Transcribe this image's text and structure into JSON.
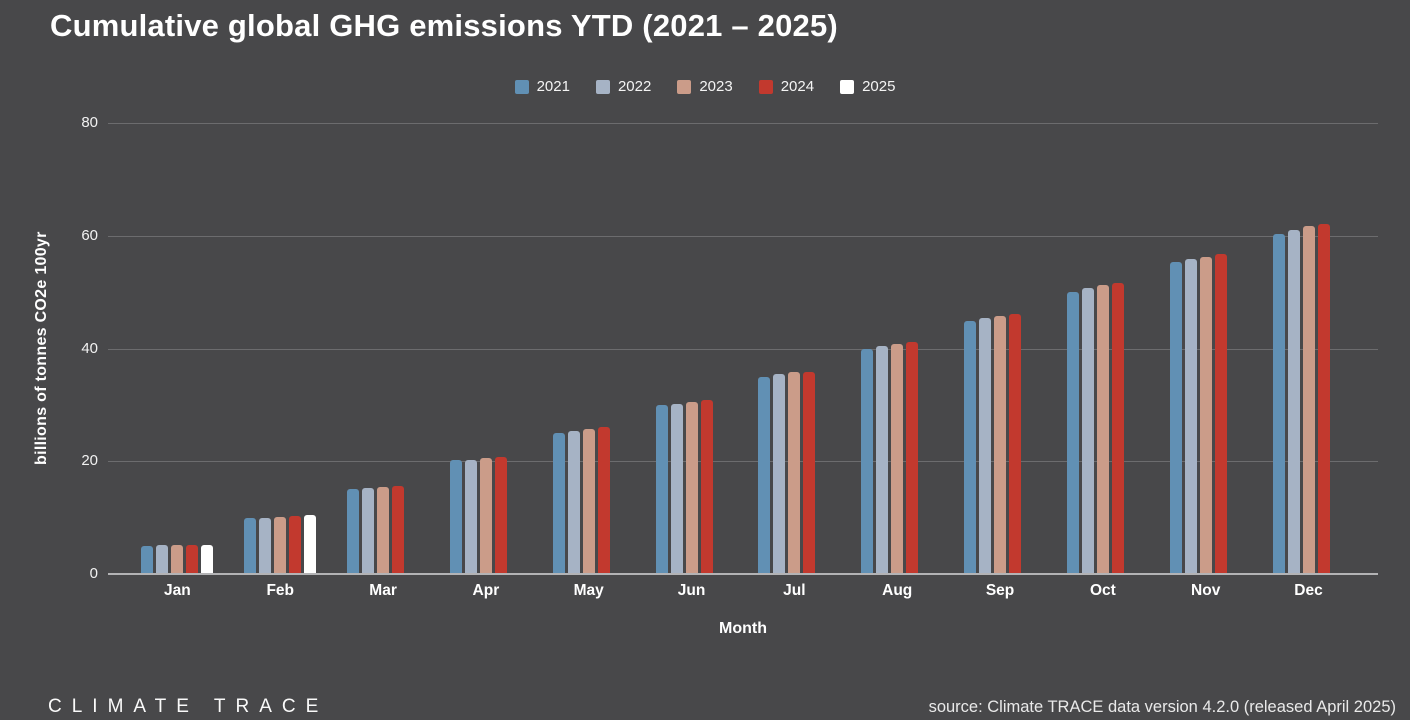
{
  "chart_data": {
    "type": "bar",
    "title": "Cumulative global GHG emissions YTD (2021 – 2025)",
    "xlabel": "Month",
    "ylabel": "billions of tonnes CO2e 100yr",
    "ylim": [
      0,
      80
    ],
    "yticks": [
      0,
      20,
      40,
      60,
      80
    ],
    "grid": true,
    "legend_position": "top-center",
    "categories": [
      "Jan",
      "Feb",
      "Mar",
      "Apr",
      "May",
      "Jun",
      "Jul",
      "Aug",
      "Sep",
      "Oct",
      "Nov",
      "Dec"
    ],
    "series": [
      {
        "name": "2021",
        "color": "#6190b4",
        "values": [
          5.0,
          9.9,
          15.1,
          20.2,
          25.0,
          30.0,
          35.0,
          40.0,
          44.9,
          50.0,
          55.3,
          60.3
        ]
      },
      {
        "name": "2022",
        "color": "#a6b3c5",
        "values": [
          5.1,
          10.0,
          15.3,
          20.3,
          25.4,
          30.2,
          35.4,
          40.4,
          45.4,
          50.7,
          55.8,
          61.1
        ]
      },
      {
        "name": "2023",
        "color": "#cb9c89",
        "values": [
          5.1,
          10.1,
          15.4,
          20.5,
          25.8,
          30.5,
          35.9,
          40.8,
          45.7,
          51.2,
          56.2,
          61.8
        ]
      },
      {
        "name": "2024",
        "color": "#c2392e",
        "values": [
          5.2,
          10.3,
          15.7,
          20.8,
          26.0,
          30.9,
          35.9,
          41.2,
          46.2,
          51.7,
          56.7,
          62.1
        ]
      },
      {
        "name": "2025",
        "color": "#ffffff",
        "values": [
          5.2,
          10.4,
          null,
          null,
          null,
          null,
          null,
          null,
          null,
          null,
          null,
          null
        ]
      }
    ]
  },
  "footer": {
    "logo": "CLIMATE TRACE",
    "source": "source: Climate TRACE data version 4.2.0 (released April 2025)"
  },
  "colors": {
    "background": "#48484a",
    "text": "#ffffff",
    "grid": "rgba(255,255,255,0.20)",
    "axis": "#b3b3b5",
    "source_text": "#e9e9e9"
  }
}
